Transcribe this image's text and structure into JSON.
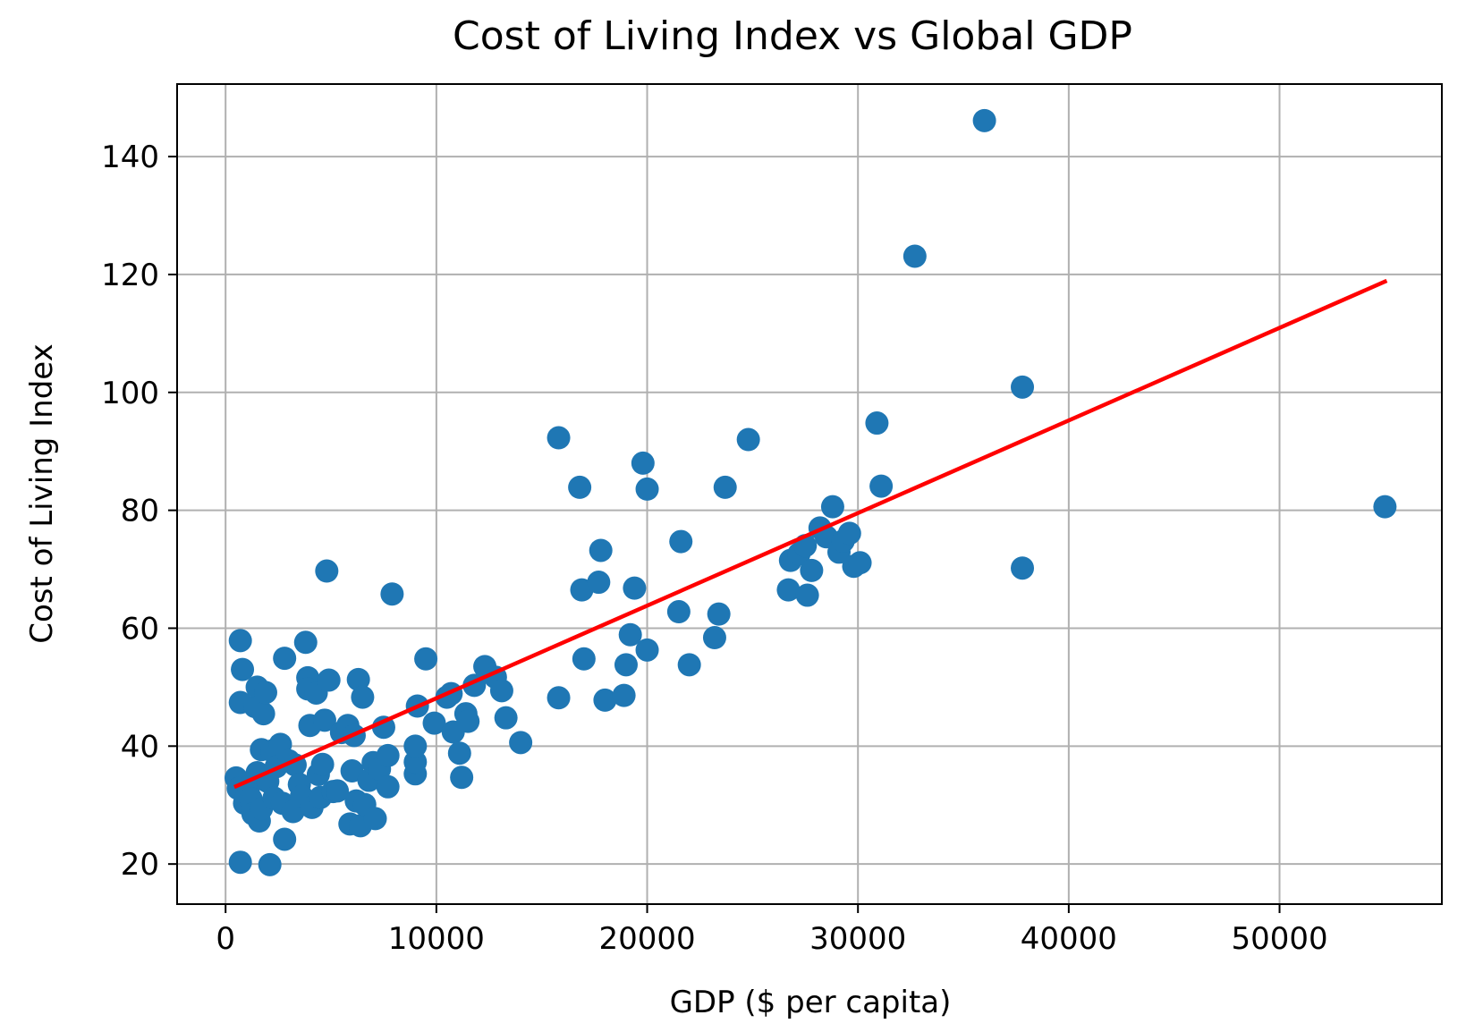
{
  "chart_data": {
    "type": "scatter",
    "title": "Cost of Living Index vs Global GDP",
    "xlabel": "GDP ($ per capita)",
    "ylabel": "Cost of Living Index",
    "xlim": [
      -2300,
      57700
    ],
    "ylim": [
      13.2,
      152.3
    ],
    "xticks": [
      0,
      10000,
      20000,
      30000,
      40000,
      50000
    ],
    "yticks": [
      20,
      40,
      60,
      80,
      100,
      120,
      140
    ],
    "grid": true,
    "colors": {
      "points": "#1f77b4",
      "trend": "#ff0000"
    },
    "series": [
      {
        "name": "countries",
        "kind": "scatter",
        "points": [
          [
            500,
            34.6
          ],
          [
            600,
            32.8
          ],
          [
            700,
            47.4
          ],
          [
            700,
            20.3
          ],
          [
            700,
            57.9
          ],
          [
            800,
            53.0
          ],
          [
            900,
            30.3
          ],
          [
            1000,
            31.6
          ],
          [
            1100,
            33.1
          ],
          [
            1200,
            31.1
          ],
          [
            1300,
            28.5
          ],
          [
            1400,
            46.7
          ],
          [
            1500,
            50.0
          ],
          [
            1500,
            35.5
          ],
          [
            1600,
            27.3
          ],
          [
            1700,
            29.4
          ],
          [
            1700,
            39.4
          ],
          [
            1800,
            45.5
          ],
          [
            1900,
            49.1
          ],
          [
            2000,
            34.0
          ],
          [
            2100,
            19.9
          ],
          [
            2200,
            39.2
          ],
          [
            2300,
            31.2
          ],
          [
            2400,
            36.5
          ],
          [
            2600,
            40.3
          ],
          [
            2700,
            30.3
          ],
          [
            2800,
            54.9
          ],
          [
            2800,
            24.2
          ],
          [
            3000,
            37.5
          ],
          [
            3200,
            28.9
          ],
          [
            3300,
            36.8
          ],
          [
            3500,
            33.5
          ],
          [
            3600,
            31.5
          ],
          [
            3800,
            57.6
          ],
          [
            3900,
            51.6
          ],
          [
            3900,
            49.7
          ],
          [
            4000,
            43.5
          ],
          [
            4100,
            29.6
          ],
          [
            4300,
            49.0
          ],
          [
            4400,
            35.2
          ],
          [
            4500,
            31.3
          ],
          [
            4600,
            36.9
          ],
          [
            4700,
            44.4
          ],
          [
            4800,
            69.7
          ],
          [
            4900,
            51.2
          ],
          [
            5100,
            32.3
          ],
          [
            5300,
            32.4
          ],
          [
            5500,
            42.3
          ],
          [
            5800,
            43.5
          ],
          [
            5900,
            26.8
          ],
          [
            6000,
            35.8
          ],
          [
            6100,
            41.8
          ],
          [
            6200,
            30.7
          ],
          [
            6300,
            51.3
          ],
          [
            6400,
            26.5
          ],
          [
            6500,
            48.3
          ],
          [
            6600,
            30.1
          ],
          [
            6800,
            34.2
          ],
          [
            7000,
            37.2
          ],
          [
            7100,
            27.7
          ],
          [
            7300,
            36.1
          ],
          [
            7500,
            43.2
          ],
          [
            7700,
            38.4
          ],
          [
            7700,
            33.1
          ],
          [
            7900,
            65.8
          ],
          [
            9000,
            35.3
          ],
          [
            9000,
            37.3
          ],
          [
            9000,
            40.0
          ],
          [
            9100,
            46.8
          ],
          [
            9500,
            54.8
          ],
          [
            9900,
            43.9
          ],
          [
            10500,
            48.3
          ],
          [
            10700,
            48.9
          ],
          [
            10800,
            42.4
          ],
          [
            11100,
            38.8
          ],
          [
            11200,
            34.7
          ],
          [
            11400,
            45.5
          ],
          [
            11500,
            44.2
          ],
          [
            11800,
            50.3
          ],
          [
            12300,
            53.5
          ],
          [
            12800,
            51.7
          ],
          [
            13100,
            49.4
          ],
          [
            13300,
            44.8
          ],
          [
            14000,
            40.6
          ],
          [
            15800,
            92.3
          ],
          [
            15800,
            48.2
          ],
          [
            16800,
            83.9
          ],
          [
            16900,
            66.5
          ],
          [
            17000,
            54.8
          ],
          [
            17700,
            67.8
          ],
          [
            17800,
            73.2
          ],
          [
            18000,
            47.8
          ],
          [
            18900,
            48.6
          ],
          [
            19000,
            53.8
          ],
          [
            19200,
            58.9
          ],
          [
            19400,
            66.8
          ],
          [
            19800,
            88.0
          ],
          [
            20000,
            83.6
          ],
          [
            20000,
            56.3
          ],
          [
            21500,
            62.8
          ],
          [
            21600,
            74.7
          ],
          [
            22000,
            53.8
          ],
          [
            23200,
            58.4
          ],
          [
            23400,
            62.4
          ],
          [
            23700,
            83.9
          ],
          [
            24800,
            92.0
          ],
          [
            26700,
            66.5
          ],
          [
            26800,
            71.5
          ],
          [
            27200,
            72.6
          ],
          [
            27500,
            74.0
          ],
          [
            27600,
            65.6
          ],
          [
            27800,
            69.8
          ],
          [
            28200,
            77.0
          ],
          [
            28500,
            75.5
          ],
          [
            28800,
            80.6
          ],
          [
            29100,
            72.9
          ],
          [
            29300,
            74.8
          ],
          [
            29600,
            76.1
          ],
          [
            29800,
            70.5
          ],
          [
            30100,
            71.1
          ],
          [
            30900,
            94.8
          ],
          [
            31100,
            84.1
          ],
          [
            32700,
            123.1
          ],
          [
            36000,
            146.1
          ],
          [
            37800,
            100.9
          ],
          [
            37800,
            70.2
          ],
          [
            55000,
            80.6
          ]
        ]
      },
      {
        "name": "linear fit",
        "kind": "line",
        "points": [
          [
            500,
            33.2
          ],
          [
            55000,
            118.8
          ]
        ]
      }
    ]
  }
}
